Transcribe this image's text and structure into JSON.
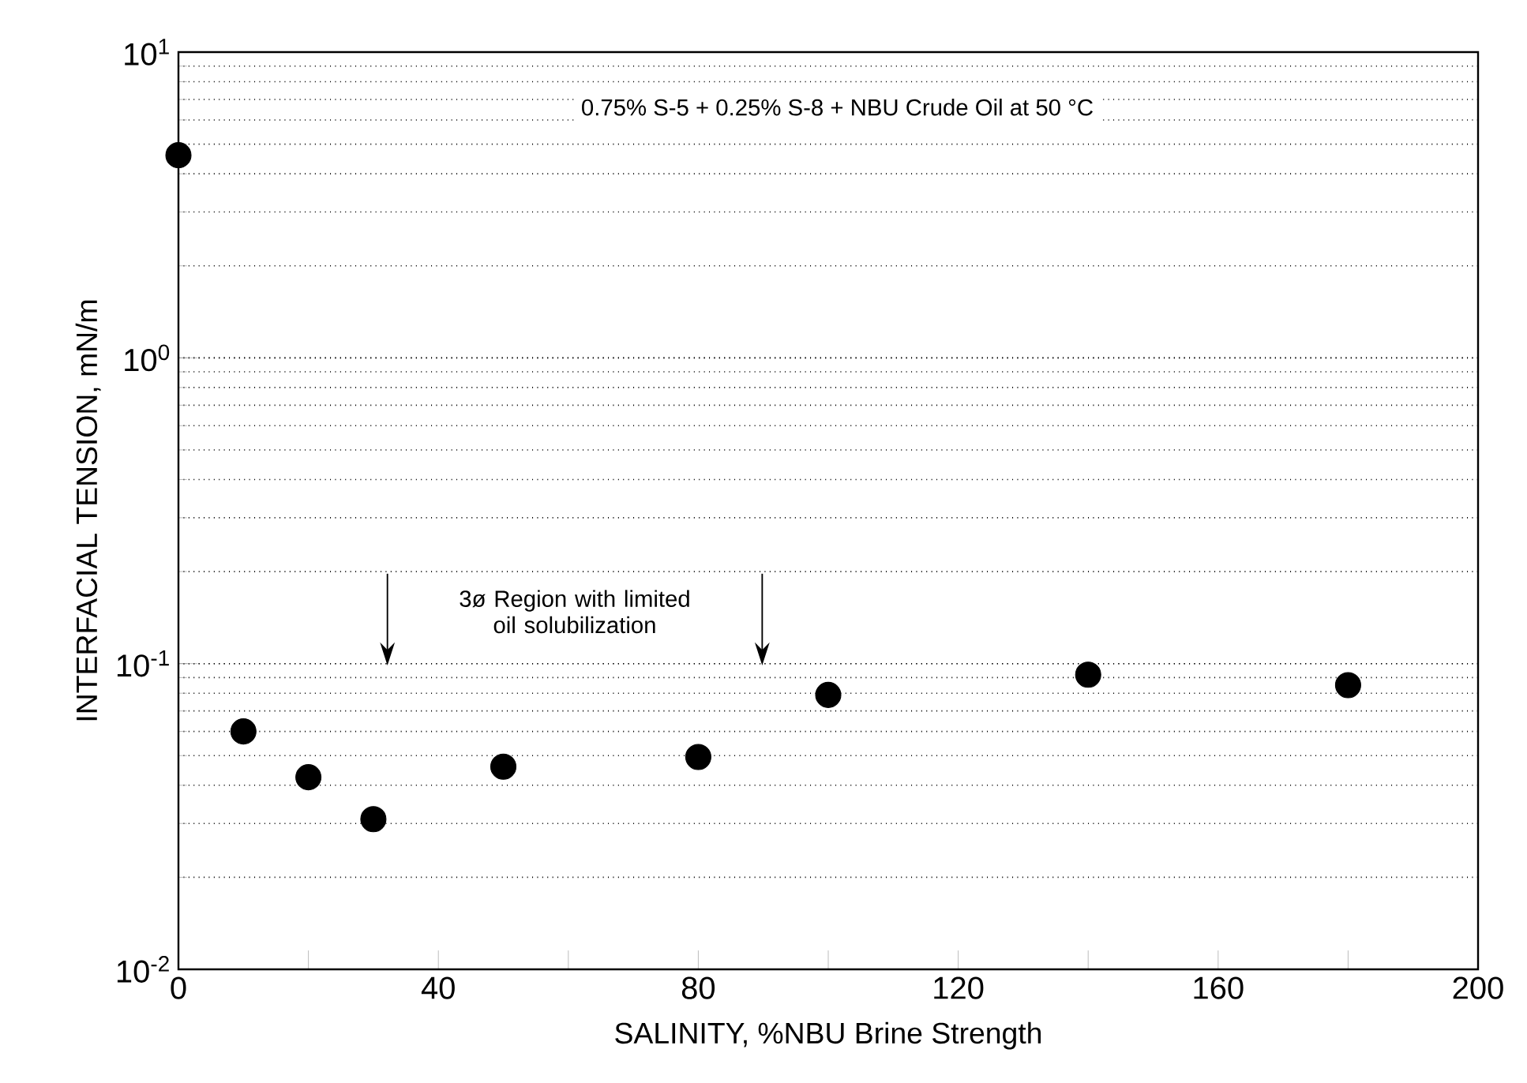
{
  "chart_data": {
    "type": "scatter",
    "xlabel": "SALINITY, %NBU Brine Strength",
    "ylabel": "INTERFACIAL TENSION, mN/m",
    "annotations": [
      "0.75% S-5 + 0.25% S-8 + NBU Crude Oil at 50 °C",
      "3ø Region with limited oil solubilization"
    ],
    "x": [
      0,
      10,
      20,
      30,
      50,
      80,
      100,
      140,
      180
    ],
    "series": [
      {
        "color": "#000000",
        "values": [
          4.6,
          0.06,
          0.0425,
          0.031,
          0.046,
          0.0495,
          0.079,
          0.092,
          0.085
        ]
      }
    ],
    "xlim": [
      0,
      200
    ],
    "xticks": [
      0,
      {
        "value": 20,
        "label": null
      },
      40,
      {
        "value": 60,
        "label": null
      },
      80,
      {
        "value": 100,
        "label": null
      },
      120,
      {
        "value": 140,
        "label": null
      },
      160,
      {
        "value": 180,
        "label": null
      },
      200
    ],
    "ylim": [
      0.01,
      10
    ],
    "yticks": [
      {
        "value": 0.01,
        "label": "10$^{-2}$"
      },
      {
        "value": 0.1,
        "label": "10$^{-1}$"
      },
      {
        "value": 1,
        "label": "10$^{0}$"
      },
      {
        "value": 10,
        "label": "10$^{1}$"
      }
    ],
    "log": "y",
    "grid": "y",
    "marker": "circle"
  }
}
